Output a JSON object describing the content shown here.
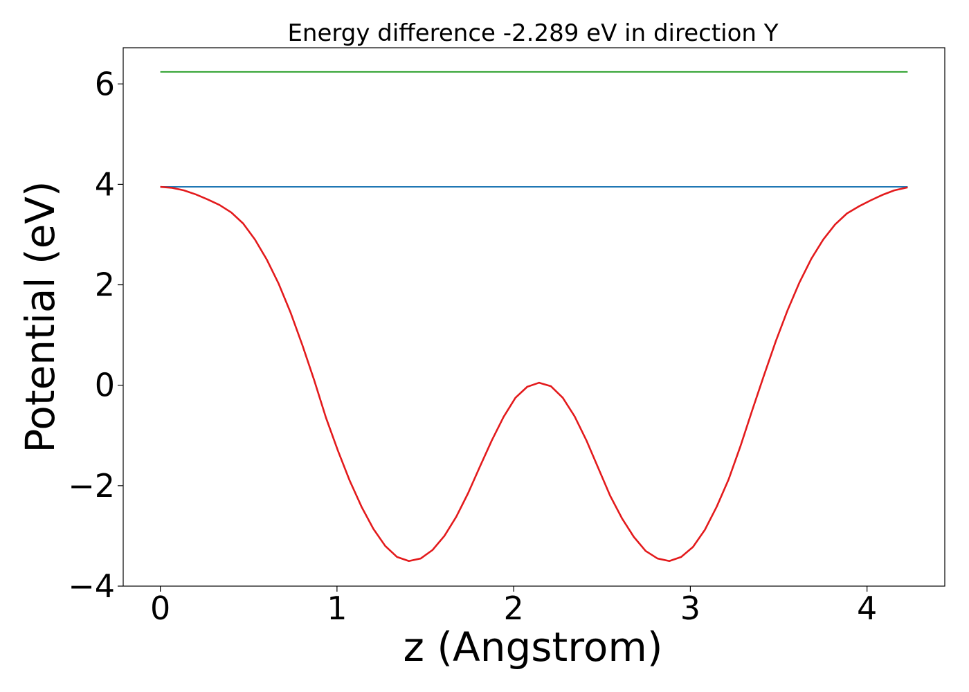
{
  "chart_data": {
    "type": "line",
    "title": "Energy difference -2.289 eV in direction Y",
    "xlabel": "z (Angstrom)",
    "ylabel": "Potential (eV)",
    "xlim": [
      -0.21,
      4.44
    ],
    "ylim": [
      -4,
      6.72
    ],
    "xticks": [
      {
        "value": 0,
        "label": "0"
      },
      {
        "value": 1,
        "label": "1"
      },
      {
        "value": 2,
        "label": "2"
      },
      {
        "value": 3,
        "label": "3"
      },
      {
        "value": 4,
        "label": "4"
      }
    ],
    "yticks": [
      {
        "value": -4,
        "label": "−4"
      },
      {
        "value": -2,
        "label": "−2"
      },
      {
        "value": 0,
        "label": "0"
      },
      {
        "value": 2,
        "label": "2"
      },
      {
        "value": 4,
        "label": "4"
      },
      {
        "value": 6,
        "label": "6"
      }
    ],
    "grid": false,
    "series": [
      {
        "color": "#2ca02c",
        "x": [
          0,
          4.23
        ],
        "y": [
          6.24,
          6.24
        ]
      },
      {
        "color": "#1f77b4",
        "x": [
          0,
          4.23
        ],
        "y": [
          3.95,
          3.95
        ]
      },
      {
        "color": "#e31a1c",
        "x": [
          0.0,
          0.067,
          0.134,
          0.201,
          0.268,
          0.335,
          0.402,
          0.469,
          0.536,
          0.603,
          0.67,
          0.737,
          0.804,
          0.871,
          0.938,
          1.005,
          1.072,
          1.139,
          1.206,
          1.273,
          1.34,
          1.407,
          1.474,
          1.541,
          1.608,
          1.675,
          1.742,
          1.809,
          1.876,
          1.943,
          2.01,
          2.077,
          2.144,
          2.211,
          2.278,
          2.345,
          2.412,
          2.479,
          2.546,
          2.613,
          2.68,
          2.747,
          2.814,
          2.881,
          2.948,
          3.015,
          3.082,
          3.149,
          3.216,
          3.283,
          3.35,
          3.417,
          3.484,
          3.551,
          3.618,
          3.685,
          3.752,
          3.819,
          3.886,
          3.953,
          4.02,
          4.087,
          4.154,
          4.23
        ],
        "y": [
          3.95,
          3.93,
          3.88,
          3.8,
          3.7,
          3.59,
          3.44,
          3.22,
          2.9,
          2.5,
          2.02,
          1.45,
          0.8,
          0.1,
          -0.65,
          -1.3,
          -1.9,
          -2.42,
          -2.86,
          -3.2,
          -3.42,
          -3.5,
          -3.45,
          -3.28,
          -3.0,
          -2.62,
          -2.15,
          -1.62,
          -1.1,
          -0.63,
          -0.25,
          -0.03,
          0.05,
          -0.02,
          -0.25,
          -0.62,
          -1.1,
          -1.65,
          -2.2,
          -2.65,
          -3.02,
          -3.3,
          -3.45,
          -3.5,
          -3.42,
          -3.22,
          -2.88,
          -2.42,
          -1.88,
          -1.22,
          -0.5,
          0.2,
          0.88,
          1.5,
          2.05,
          2.52,
          2.9,
          3.2,
          3.42,
          3.56,
          3.68,
          3.79,
          3.88,
          3.94
        ]
      }
    ]
  }
}
